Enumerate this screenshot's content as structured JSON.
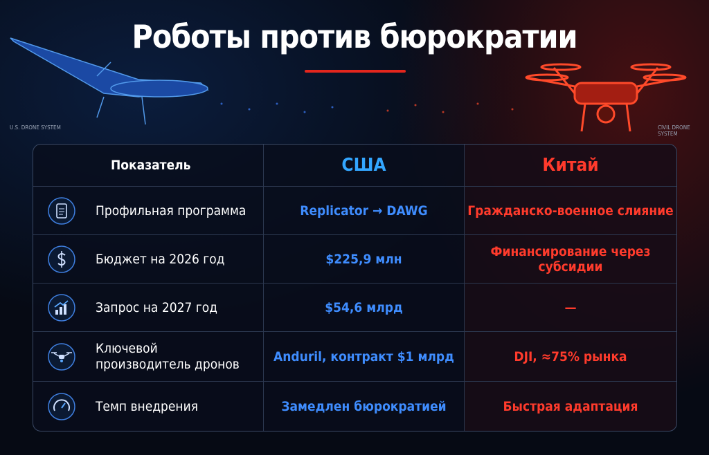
{
  "header": {
    "title": "Роботы против бюрократии",
    "left_caption": "U.S. DRONE SYSTEM",
    "right_caption": "CIVIL DRONE SYSTEM"
  },
  "table": {
    "columns": [
      "Показатель",
      "США",
      "Китай"
    ],
    "rows": [
      [
        "Профильная программа",
        "Replicator → DAWG",
        "Гражданско-военное слияние"
      ],
      [
        "Бюджет на 2026 год",
        "$225,9 млн",
        "Финансирование через субсидии"
      ],
      [
        "Запрос на 2027 год",
        "$54,6 млрд",
        "—"
      ],
      [
        "Ключевой производитель дронов",
        "Anduril, контракт $1 млрд",
        "DJI, ≈75% рынка"
      ],
      [
        "Темп внедрения",
        "Замедлен бюрократией",
        "Быстрая адаптация"
      ]
    ]
  }
}
